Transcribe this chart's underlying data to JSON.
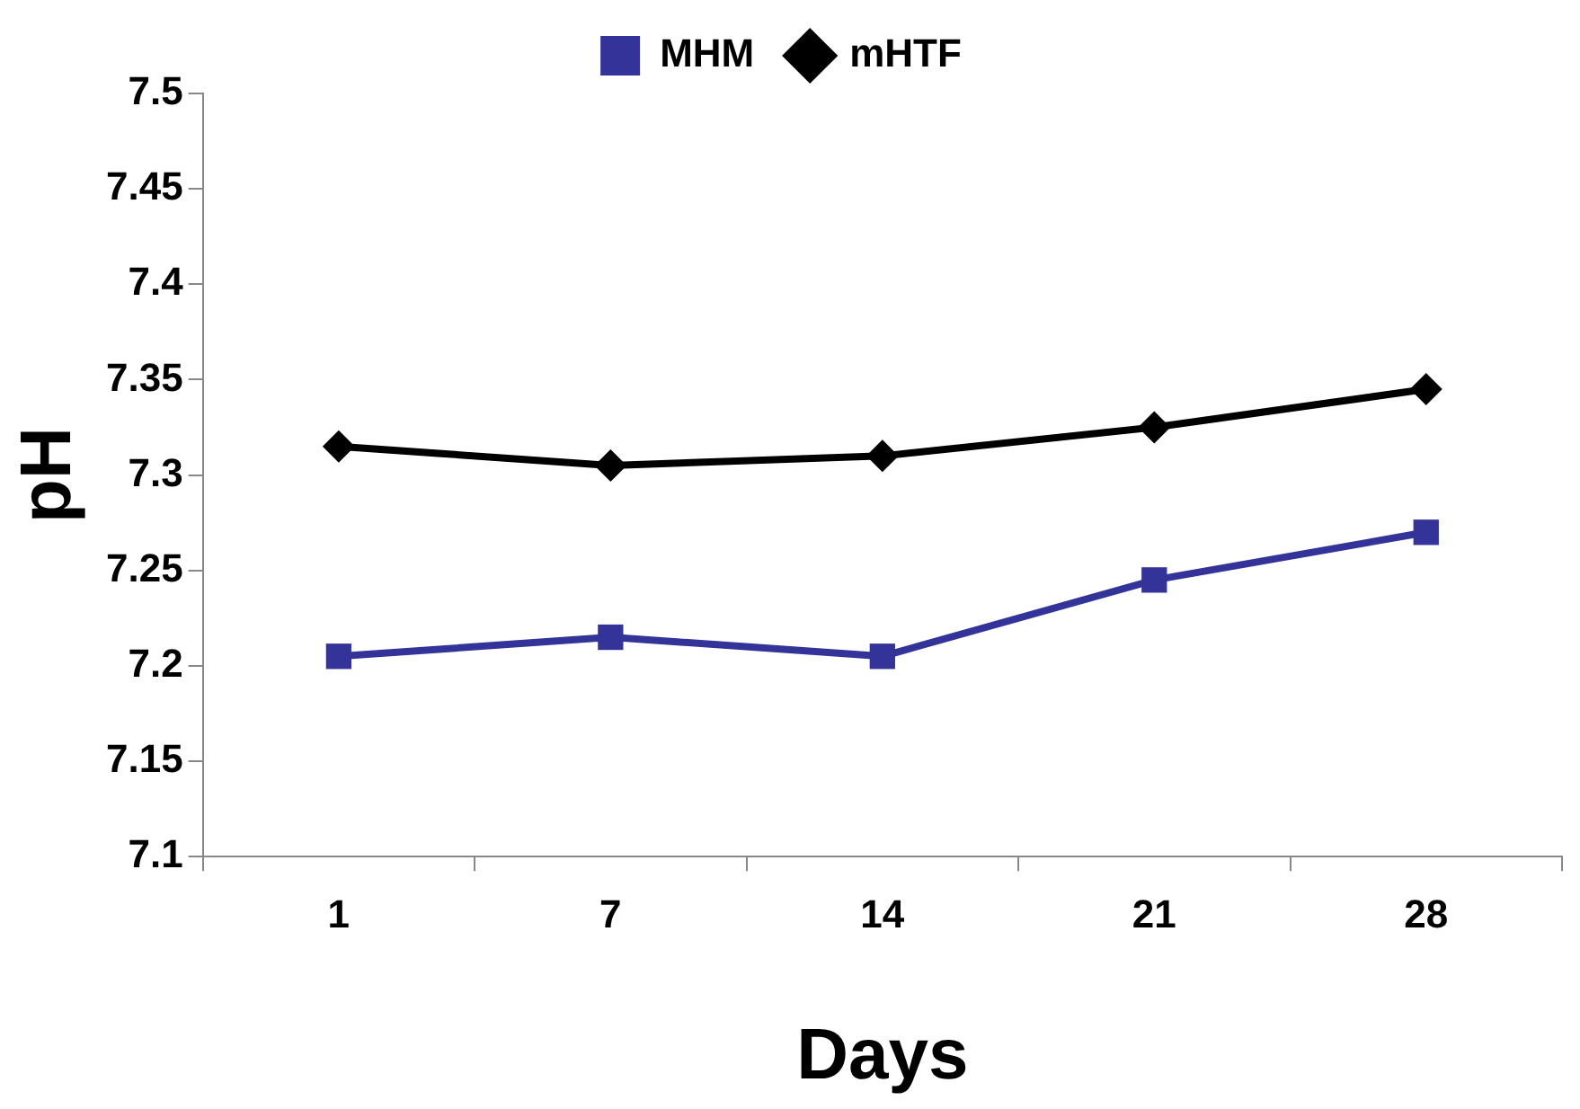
{
  "chart_data": {
    "type": "line",
    "xlabel": "Days",
    "ylabel": "pH",
    "categories": [
      "1",
      "7",
      "14",
      "21",
      "28"
    ],
    "series": [
      {
        "name": "MHM",
        "color": "#333399",
        "marker": "square",
        "values": [
          7.205,
          7.215,
          7.205,
          7.245,
          7.27
        ]
      },
      {
        "name": "mHTF",
        "color": "#000000",
        "marker": "diamond",
        "values": [
          7.315,
          7.305,
          7.31,
          7.325,
          7.345
        ]
      }
    ],
    "ylim": [
      7.1,
      7.5
    ],
    "yticks": [
      7.1,
      7.15,
      7.2,
      7.25,
      7.3,
      7.35,
      7.4,
      7.45,
      7.5
    ],
    "grid": false,
    "legend": "top",
    "line_style": "solid"
  }
}
